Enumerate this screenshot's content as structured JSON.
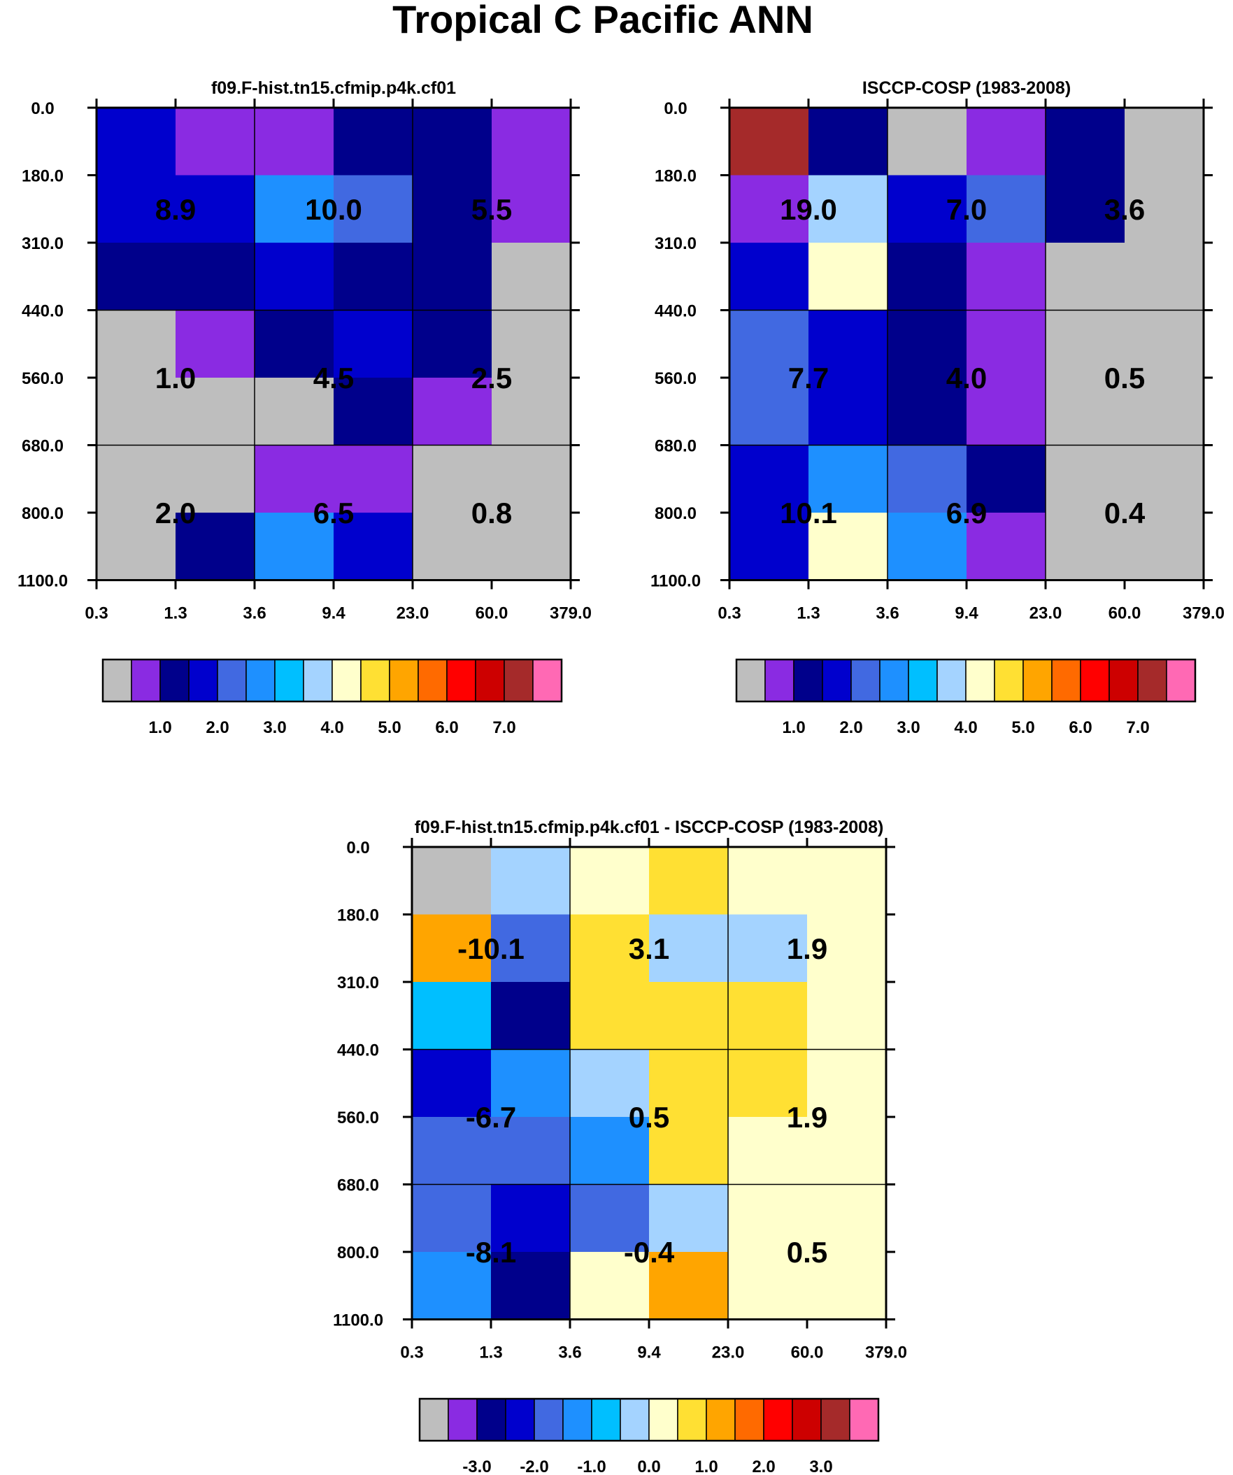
{
  "title": "Tropical C Pacific ANN",
  "chart_data": [
    {
      "type": "heatmap",
      "title": "f09.F-hist.tn15.cfmip.p4k.cf01",
      "x_ticks": [
        "0.3",
        "1.3",
        "3.6",
        "9.4",
        "23.0",
        "60.0",
        "379.0"
      ],
      "y_ticks": [
        "0.0",
        "180.0",
        "310.0",
        "440.0",
        "560.0",
        "680.0",
        "800.0",
        "1100.0"
      ],
      "cells": [
        [
          "blue",
          "purple",
          "purple",
          "navy",
          "navy",
          "purple"
        ],
        [
          "blue",
          "blue",
          "dodger",
          "royal",
          "navy",
          "purple"
        ],
        [
          "navy",
          "navy",
          "blue",
          "navy",
          "navy",
          "gray"
        ],
        [
          "gray",
          "purple",
          "navy",
          "blue",
          "navy",
          "gray"
        ],
        [
          "gray",
          "gray",
          "gray",
          "navy",
          "purple",
          "gray"
        ],
        [
          "gray",
          "gray",
          "purple",
          "purple",
          "gray",
          "gray"
        ],
        [
          "gray",
          "navy",
          "dodger",
          "blue",
          "gray",
          "gray"
        ]
      ],
      "labels": [
        [
          "8.9",
          "10.0",
          "5.5"
        ],
        [
          "1.0",
          "4.5",
          "2.5"
        ],
        [
          "2.0",
          "6.5",
          "0.8"
        ]
      ],
      "colorbar_labels": [
        "1.0",
        "2.0",
        "3.0",
        "4.0",
        "5.0",
        "6.0",
        "7.0"
      ]
    },
    {
      "type": "heatmap",
      "title": "ISCCP-COSP (1983-2008)",
      "x_ticks": [
        "0.3",
        "1.3",
        "3.6",
        "9.4",
        "23.0",
        "60.0",
        "379.0"
      ],
      "y_ticks": [
        "0.0",
        "180.0",
        "310.0",
        "440.0",
        "560.0",
        "680.0",
        "800.0",
        "1100.0"
      ],
      "cells": [
        [
          "brown",
          "navy",
          "gray",
          "purple",
          "navy",
          "gray"
        ],
        [
          "purple",
          "lightblue",
          "blue",
          "royal",
          "navy",
          "gray"
        ],
        [
          "blue",
          "cream",
          "navy",
          "purple",
          "gray",
          "gray"
        ],
        [
          "royal",
          "blue",
          "navy",
          "purple",
          "gray",
          "gray"
        ],
        [
          "royal",
          "blue",
          "navy",
          "purple",
          "gray",
          "gray"
        ],
        [
          "blue",
          "dodger",
          "royal",
          "navy",
          "gray",
          "gray"
        ],
        [
          "blue",
          "cream",
          "dodger",
          "purple",
          "gray",
          "gray"
        ]
      ],
      "labels": [
        [
          "19.0",
          "7.0",
          "3.6"
        ],
        [
          "7.7",
          "4.0",
          "0.5"
        ],
        [
          "10.1",
          "6.9",
          "0.4"
        ]
      ],
      "colorbar_labels": [
        "1.0",
        "2.0",
        "3.0",
        "4.0",
        "5.0",
        "6.0",
        "7.0"
      ]
    },
    {
      "type": "heatmap",
      "title": "f09.F-hist.tn15.cfmip.p4k.cf01 - ISCCP-COSP (1983-2008)",
      "x_ticks": [
        "0.3",
        "1.3",
        "3.6",
        "9.4",
        "23.0",
        "60.0",
        "379.0"
      ],
      "y_ticks": [
        "0.0",
        "180.0",
        "310.0",
        "440.0",
        "560.0",
        "680.0",
        "800.0",
        "1100.0"
      ],
      "cells": [
        [
          "gray",
          "lightblue",
          "cream",
          "yellow",
          "cream",
          "cream"
        ],
        [
          "orange",
          "royal",
          "yellow",
          "lightblue",
          "lightblue",
          "cream"
        ],
        [
          "cyan",
          "navy",
          "yellow",
          "yellow",
          "yellow",
          "cream"
        ],
        [
          "blue",
          "dodger",
          "lightblue",
          "yellow",
          "yellow",
          "cream"
        ],
        [
          "royal",
          "royal",
          "dodger",
          "yellow",
          "cream",
          "cream"
        ],
        [
          "royal",
          "blue",
          "royal",
          "lightblue",
          "cream",
          "cream"
        ],
        [
          "dodger",
          "navy",
          "cream",
          "orange",
          "cream",
          "cream"
        ]
      ],
      "labels": [
        [
          "-10.1",
          "3.1",
          "1.9"
        ],
        [
          "-6.7",
          "0.5",
          "1.9"
        ],
        [
          "-8.1",
          "-0.4",
          "0.5"
        ]
      ],
      "colorbar_labels": [
        "-3.0",
        "-2.0",
        "-1.0",
        "0.0",
        "1.0",
        "2.0",
        "3.0"
      ]
    }
  ],
  "palette": {
    "gray": "#bebebe",
    "purple": "#8a2be2",
    "navy": "#00008b",
    "blue": "#0000cd",
    "royal": "#4169e1",
    "dodger": "#1e90ff",
    "cyan": "#00bfff",
    "lightblue": "#a4d3ff",
    "cream": "#ffffcc",
    "yellow": "#ffe033",
    "orange": "#ffa500",
    "darkorange": "#ff6a00",
    "red": "#ff0000",
    "darkred": "#cd0000",
    "brown": "#a52a2a",
    "pink": "#ff69b4"
  },
  "colorbar_colors": [
    "gray",
    "purple",
    "navy",
    "blue",
    "royal",
    "dodger",
    "cyan",
    "lightblue",
    "cream",
    "yellow",
    "orange",
    "darkorange",
    "red",
    "darkred",
    "brown",
    "pink"
  ]
}
